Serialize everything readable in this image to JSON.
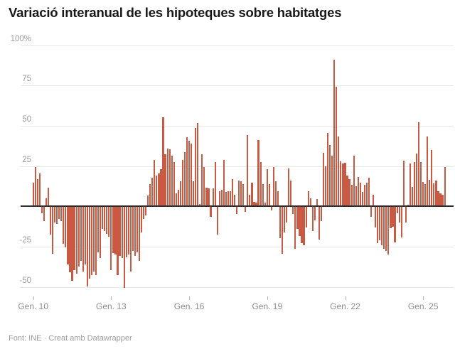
{
  "title": "Variació interanual de les hipoteques sobre habitatges",
  "footer": "Font: INE · Creat amb Datawrapper",
  "accent_color": "#c85a43",
  "chart_data": {
    "type": "bar",
    "title": "Variació interanual de les hipoteques sobre habitatges",
    "source": "Font: INE · Creat amb Datawrapper",
    "unit": "%",
    "frequency": "monthly",
    "x_start": "Gener 2010",
    "x_end": "Novembre 2025",
    "ylim": [
      -60,
      100
    ],
    "grid": "horizontal",
    "bar_color": "#c85a43",
    "y_ticks": [
      {
        "value": 100,
        "label": "100%"
      },
      {
        "value": 75,
        "label": "75"
      },
      {
        "value": 50,
        "label": "50"
      },
      {
        "value": 25,
        "label": "25"
      },
      {
        "value": -25,
        "label": "-25"
      },
      {
        "value": -50,
        "label": "-50"
      }
    ],
    "x_ticks": [
      {
        "month_index": 0,
        "label": "Gen. 10"
      },
      {
        "month_index": 36,
        "label": "Gen. 13"
      },
      {
        "month_index": 72,
        "label": "Gen. 16"
      },
      {
        "month_index": 108,
        "label": "Gen. 19"
      },
      {
        "month_index": 144,
        "label": "Gen. 22"
      },
      {
        "month_index": 180,
        "label": "Gen. 25"
      }
    ],
    "values": [
      14.7,
      24.3,
      17.0,
      20.6,
      -3.7,
      -8.8,
      5.2,
      11.8,
      -17.0,
      -28.8,
      -9.6,
      -10.3,
      -7.4,
      -8.8,
      -22.9,
      -25.1,
      -35.4,
      -40.6,
      -45.7,
      -39.1,
      -41.3,
      -36.9,
      -33.2,
      -39.8,
      -35.4,
      -49.4,
      -44.2,
      -42.0,
      -39.8,
      -42.0,
      -28.0,
      -31.7,
      -13.3,
      -14.7,
      -16.8,
      -18.4,
      -38.9,
      -28.7,
      -29.5,
      -42.0,
      -30.2,
      -31.7,
      -50.1,
      -31.0,
      -29.5,
      -39.8,
      -27.2,
      -30.2,
      -28.0,
      -33.2,
      -15.5,
      -7.4,
      -5.2,
      6.6,
      14.0,
      17.7,
      28.8,
      19.2,
      20.6,
      22.9,
      55.3,
      32.4,
      36.1,
      35.4,
      31.7,
      27.3,
      8.1,
      10.3,
      15.5,
      28.8,
      33.6,
      42.8,
      40.6,
      39.1,
      15.5,
      48.7,
      51.6,
      1.5,
      32.4,
      24.3,
      11.8,
      11.1,
      -5.9,
      11.1,
      27.3,
      -17.0,
      9.6,
      10.3,
      28.8,
      8.8,
      9.6,
      9.6,
      17.0,
      7.4,
      -4.4,
      16.2,
      15.5,
      14.0,
      -3.0,
      44.2,
      7.4,
      14.7,
      2.9,
      2.2,
      41.3,
      27.3,
      14.0,
      2.2,
      22.9,
      14.0,
      -2.2,
      24.3,
      15.5,
      9.6,
      -19.2,
      -28.8,
      -15.5,
      -9.6,
      23.6,
      16.0,
      -4.4,
      -25.8,
      -13.3,
      -17.7,
      -22.1,
      -23.6,
      -12.5,
      9.6,
      5.1,
      -14.7,
      -8.1,
      4.4,
      -19.9,
      -8.8,
      33.1,
      25.0,
      45.6,
      38.2,
      31.6,
      91.2,
      74.3,
      43.4,
      27.9,
      26.5,
      27.2,
      19.1,
      16.9,
      13.2,
      31.6,
      12.5,
      18.4,
      14.7,
      8.8,
      13.2,
      14.7,
      17.6,
      -5.9,
      7.4,
      -12.5,
      -22.1,
      -20.6,
      -23.5,
      -25.7,
      -27.2,
      -29.4,
      -13.0,
      -12.3,
      -21.7,
      -3.6,
      -9.4,
      -18.8,
      28.3,
      -9.4,
      1.0,
      26.8,
      12.3,
      27.5,
      32.6,
      52.0,
      27.5,
      15.2,
      13.8,
      43.5,
      16.7,
      34.8,
      14.5,
      15.9,
      9.4,
      8.0,
      7.4,
      24.6
    ]
  }
}
